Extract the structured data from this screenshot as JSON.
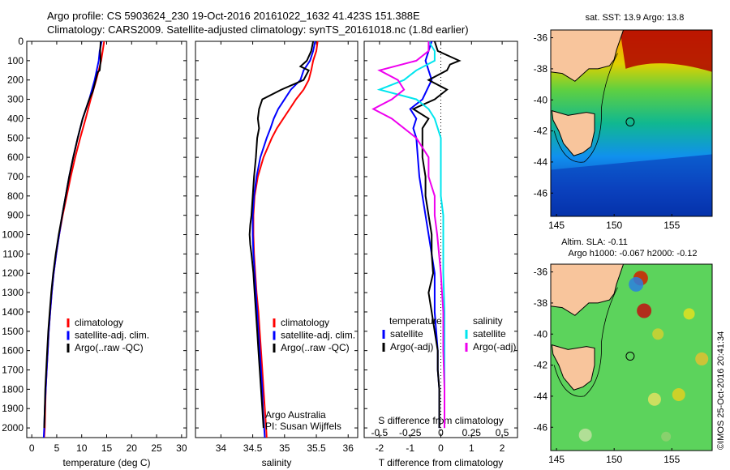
{
  "header": {
    "line1": "Argo profile: CS 5903624_230 19-Oct-2016 20161022_1632 41.423S 151.388E",
    "line2": "Climatology: CARS2009. Satellite-adjusted climatology: synTS_20161018.nc (1.8d earlier)"
  },
  "colors": {
    "climatology": "#ff0000",
    "satellite": "#0000ff",
    "argo": "#000000",
    "sal_satellite": "#00e5ee",
    "sal_argo": "#ee00ee"
  },
  "credit": "©IMOS 25-Oct-2016 20:41:34",
  "depth_axis": {
    "range": [
      0,
      2050
    ],
    "ticks": [
      0,
      100,
      200,
      300,
      400,
      500,
      600,
      700,
      800,
      900,
      1000,
      1100,
      1200,
      1300,
      1400,
      1500,
      1600,
      1700,
      1800,
      1900,
      2000
    ]
  },
  "chart_data": [
    {
      "type": "line",
      "xlabel": "temperature (deg C)",
      "xlim": [
        -1,
        31
      ],
      "xticks": [
        0,
        5,
        10,
        15,
        20,
        25,
        30
      ],
      "ylim": [
        0,
        2050
      ],
      "legend": {
        "placement": "bottom-center",
        "entries": [
          "climatology",
          "satellite-adj. clim.",
          "Argo(..raw -QC)"
        ]
      },
      "depth": [
        0,
        50,
        100,
        150,
        200,
        300,
        400,
        500,
        600,
        700,
        800,
        900,
        1000,
        1100,
        1200,
        1300,
        1400,
        1500,
        1600,
        1700,
        1800,
        1900,
        2000,
        2050
      ],
      "series": [
        {
          "name": "climatology",
          "color": "#ff0000",
          "values": [
            14.5,
            14.2,
            13.9,
            13.4,
            12.9,
            11.8,
            10.8,
            9.7,
            8.7,
            7.8,
            7.0,
            6.2,
            5.5,
            4.9,
            4.4,
            4.0,
            3.7,
            3.4,
            3.2,
            3.0,
            2.8,
            2.7,
            2.6,
            2.5
          ]
        },
        {
          "name": "satellite-adj. clim.",
          "color": "#0000ff",
          "values": [
            14.0,
            13.6,
            13.4,
            13.0,
            12.6,
            11.5,
            10.2,
            9.2,
            8.3,
            7.5,
            6.8,
            6.1,
            5.5,
            4.9,
            4.4,
            4.0,
            3.7,
            3.4,
            3.2,
            3.0,
            2.8,
            2.6,
            2.5,
            2.4
          ]
        },
        {
          "name": "Argo(..raw -QC)",
          "color": "#000000",
          "depth": [
            0,
            50,
            100,
            150,
            160,
            200,
            260,
            300,
            400,
            500,
            600,
            700,
            800,
            900,
            1000,
            1100,
            1200,
            1300,
            1400,
            1500,
            1600,
            1700,
            1800,
            1900,
            2000
          ],
          "values": [
            13.8,
            13.7,
            13.8,
            13.6,
            13.2,
            12.8,
            12.2,
            11.5,
            10.2,
            9.2,
            8.3,
            7.5,
            6.8,
            6.1,
            5.4,
            4.8,
            4.3,
            3.9,
            3.6,
            3.3,
            3.1,
            2.9,
            2.7,
            2.6,
            2.5
          ]
        }
      ]
    },
    {
      "type": "line",
      "xlabel": "salinity",
      "xlim": [
        33.6,
        36.15
      ],
      "xticks": [
        34,
        34.5,
        35,
        35.5,
        36
      ],
      "xticklabels": [
        "34",
        "34.5",
        "35",
        "35.5",
        "36"
      ],
      "ylim": [
        0,
        2050
      ],
      "legend": {
        "placement": "bottom-right",
        "entries": [
          "climatology",
          "satellite-adj. clim.",
          "Argo(..raw -QC)"
        ]
      },
      "annotation": [
        "Argo Australia",
        "PI: Susan Wijffels"
      ],
      "depth": [
        0,
        50,
        100,
        150,
        200,
        250,
        300,
        350,
        400,
        450,
        500,
        600,
        700,
        800,
        900,
        1000,
        1100,
        1200,
        1300,
        1400,
        1500,
        1600,
        1700,
        1800,
        1900,
        2000,
        2050
      ],
      "series": [
        {
          "name": "climatology",
          "color": "#ff0000",
          "values": [
            35.52,
            35.5,
            35.45,
            35.42,
            35.38,
            35.3,
            35.18,
            35.08,
            34.98,
            34.88,
            34.8,
            34.67,
            34.58,
            34.53,
            34.51,
            34.51,
            34.52,
            34.54,
            34.56,
            34.59,
            34.61,
            34.63,
            34.65,
            34.67,
            34.69,
            34.71,
            34.72
          ]
        },
        {
          "name": "satellite-adj. clim.",
          "color": "#0000ff",
          "values": [
            35.48,
            35.45,
            35.4,
            35.3,
            35.25,
            35.1,
            35.0,
            34.9,
            34.83,
            34.78,
            34.72,
            34.62,
            34.56,
            34.52,
            34.5,
            34.5,
            34.51,
            34.53,
            34.55,
            34.57,
            34.59,
            34.61,
            34.63,
            34.65,
            34.66,
            34.68,
            34.69
          ]
        },
        {
          "name": "Argo(..raw -QC)",
          "color": "#000000",
          "depth": [
            0,
            50,
            100,
            130,
            150,
            200,
            250,
            300,
            350,
            400,
            450,
            500,
            600,
            700,
            800,
            900,
            950,
            1000,
            1050,
            1100,
            1200,
            1300,
            1400,
            1500,
            1600,
            1700,
            1800,
            1900,
            2000
          ],
          "values": [
            35.45,
            35.42,
            35.35,
            35.25,
            35.38,
            35.3,
            34.95,
            34.65,
            34.6,
            34.58,
            34.6,
            34.57,
            34.55,
            34.52,
            34.5,
            34.48,
            34.46,
            34.45,
            34.46,
            34.48,
            34.51,
            34.53,
            34.55,
            34.57,
            34.59,
            34.61,
            34.63,
            34.65,
            34.67
          ]
        }
      ]
    },
    {
      "type": "line",
      "xlabel": "T difference from climatology",
      "top_xlabel": "S difference from climatology",
      "xlim": [
        -2.5,
        2.5
      ],
      "xticks": [
        -2,
        -1,
        0,
        1,
        2
      ],
      "top_xticks": [
        -0.5,
        -0.25,
        0,
        0.25,
        0.5
      ],
      "top_xticklabels": [
        "-0.5",
        "-0.25",
        "0",
        "0.25",
        "0.5"
      ],
      "ylim": [
        0,
        2050
      ],
      "legend": {
        "placement": "bottom-center",
        "headers": [
          "temperature",
          "salinity"
        ],
        "entries": [
          "satellite",
          "Argo(-adj)",
          "satellite",
          "Argo(-adj)"
        ]
      },
      "series": [
        {
          "name": "satellite",
          "group": "temperature",
          "color": "#0000ff",
          "depth": [
            0,
            50,
            100,
            150,
            200,
            300,
            350,
            400,
            450,
            500,
            600,
            700,
            800,
            900,
            1000,
            1100,
            1200,
            1300,
            1400,
            1500,
            1600,
            1700,
            1800,
            1900,
            2000
          ],
          "values": [
            -0.3,
            -0.4,
            -0.5,
            -0.4,
            -0.3,
            -0.6,
            -1.0,
            -0.8,
            -0.9,
            -0.8,
            -0.75,
            -0.7,
            -0.6,
            -0.5,
            -0.4,
            -0.3,
            -0.2,
            -0.2,
            -0.2,
            -0.15,
            -0.1,
            -0.1,
            -0.05,
            -0.05,
            -0.05
          ]
        },
        {
          "name": "Argo(-adj)",
          "group": "temperature",
          "color": "#000000",
          "depth": [
            0,
            50,
            100,
            120,
            150,
            200,
            250,
            300,
            350,
            400,
            450,
            500,
            600,
            700,
            800,
            900,
            1000,
            1100,
            1200,
            1300,
            1400,
            1500,
            1600,
            1700,
            1800,
            1900,
            2000
          ],
          "values": [
            -0.2,
            -0.1,
            0.6,
            0.3,
            0.2,
            -0.4,
            0.2,
            -0.2,
            -0.9,
            -0.4,
            -0.6,
            -0.6,
            -0.6,
            -0.5,
            -0.5,
            -0.4,
            -0.3,
            -0.3,
            -0.25,
            -0.4,
            -0.3,
            -0.2,
            -0.1,
            -0.1,
            -0.05,
            -0.05,
            -0.05
          ]
        },
        {
          "name": "satellite",
          "group": "salinity",
          "color": "#00e5ee",
          "depth": [
            0,
            50,
            100,
            150,
            200,
            250,
            300,
            350,
            400,
            500,
            600,
            700,
            800,
            900,
            1000,
            1200,
            1400,
            1600,
            1800,
            2000
          ],
          "values": [
            -0.1,
            -0.05,
            -0.05,
            -0.2,
            -0.3,
            -0.5,
            -0.2,
            -0.1,
            -0.05,
            0.0,
            0.0,
            0.0,
            0.0,
            0.02,
            0.02,
            0.02,
            0.03,
            0.03,
            0.03,
            0.03
          ]
        },
        {
          "name": "Argo(-adj)",
          "group": "salinity",
          "color": "#ee00ee",
          "depth": [
            0,
            50,
            100,
            150,
            200,
            250,
            300,
            350,
            400,
            500,
            600,
            700,
            800,
            900,
            1000,
            1200,
            1400,
            1600,
            1800,
            2000
          ],
          "values": [
            -0.1,
            -0.1,
            -0.2,
            -0.5,
            -0.35,
            -0.3,
            -0.4,
            -0.55,
            -0.4,
            -0.2,
            -0.1,
            -0.1,
            -0.05,
            -0.05,
            -0.03,
            0.0,
            0.02,
            0.02,
            0.03,
            0.03
          ]
        }
      ]
    },
    {
      "type": "heatmap",
      "title": "sat. SST: 13.9  Argo: 13.8",
      "xlim": [
        144.5,
        158.5
      ],
      "ylim": [
        -47.5,
        -35.5
      ],
      "xticks": [
        145,
        150,
        155
      ],
      "yticks": [
        -36,
        -38,
        -40,
        -42,
        -44,
        -46
      ],
      "argo_location": [
        151.388,
        -41.423
      ]
    },
    {
      "type": "heatmap",
      "title": "Altim. SLA: -0.11",
      "subtitle": "Argo h1000: -0.067 h2000: -0.12",
      "xlim": [
        144.5,
        158.5
      ],
      "ylim": [
        -47.5,
        -35.5
      ],
      "xticks": [
        145,
        150,
        155
      ],
      "yticks": [
        -36,
        -38,
        -40,
        -42,
        -44,
        -46
      ],
      "argo_location": [
        151.388,
        -41.423
      ]
    }
  ]
}
